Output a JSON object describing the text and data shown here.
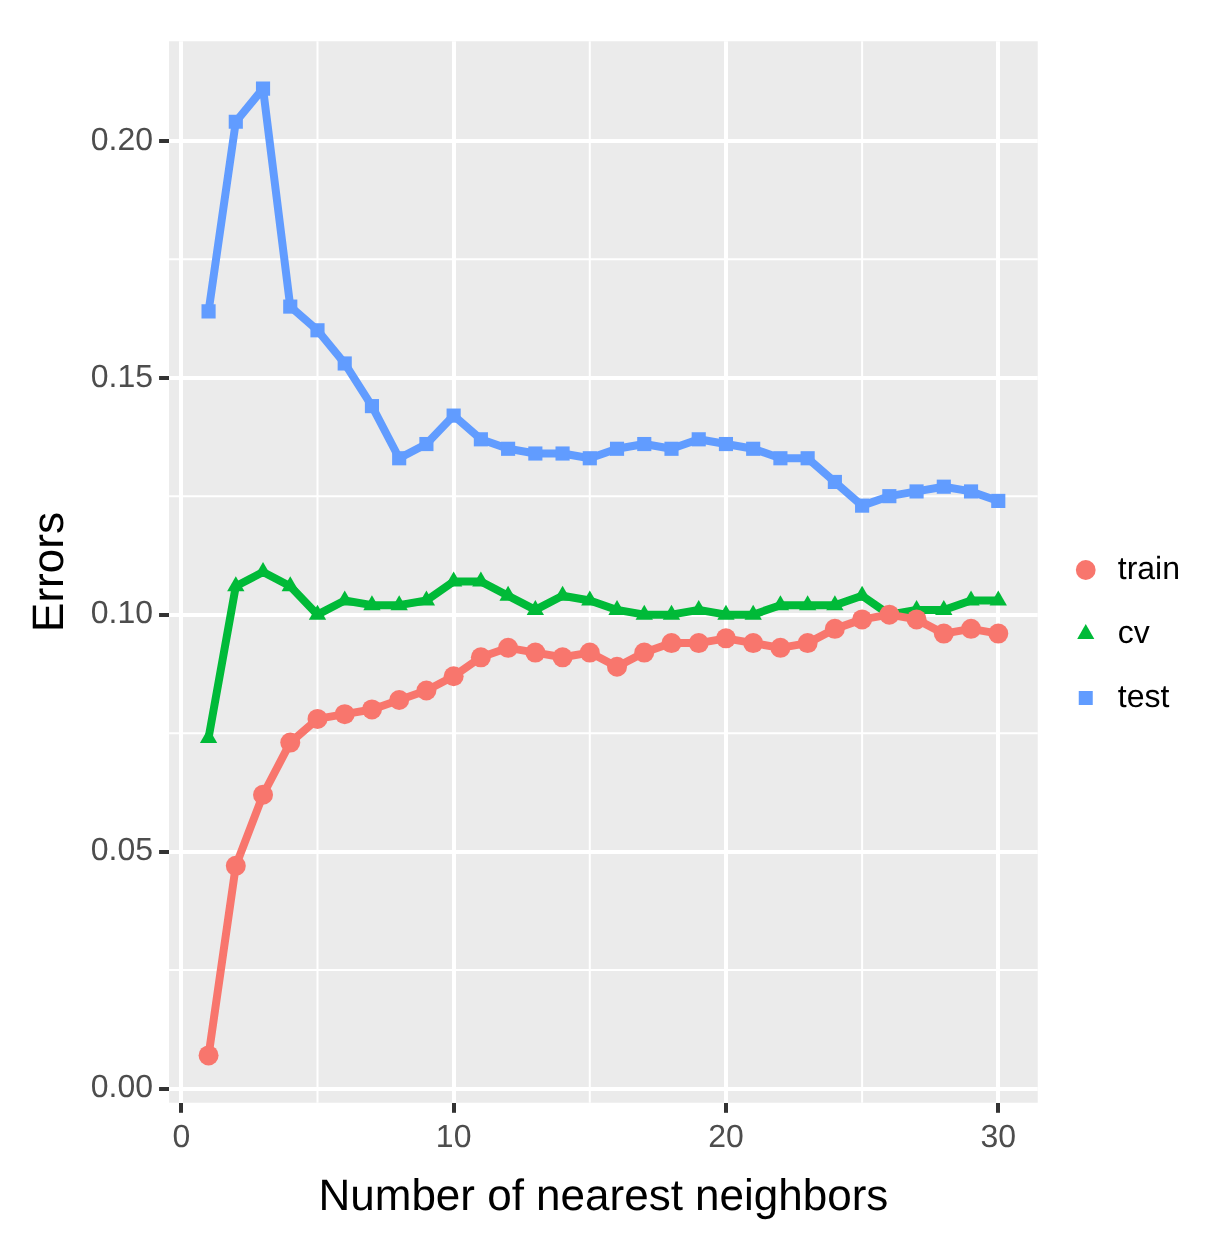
{
  "chart_data": {
    "type": "line",
    "xlabel": "Number of nearest neighbors",
    "ylabel": "Errors",
    "x": [
      1,
      2,
      3,
      4,
      5,
      6,
      7,
      8,
      9,
      10,
      11,
      12,
      13,
      14,
      15,
      16,
      17,
      18,
      19,
      20,
      21,
      22,
      23,
      24,
      25,
      26,
      27,
      28,
      29,
      30
    ],
    "xlim": [
      -0.45,
      31.45
    ],
    "xticks": [
      0,
      10,
      20,
      30
    ],
    "ylim": [
      -0.003,
      0.221
    ],
    "yticks": [
      {
        "value": 0,
        "label": "0.00"
      },
      0.05,
      {
        "value": 0.1,
        "label": "0.10"
      },
      0.15,
      {
        "value": 0.2,
        "label": "0.20"
      }
    ],
    "grid": true,
    "legend": "right",
    "line_style": "solid",
    "series": [
      {
        "name": "train",
        "color": "#f8766d",
        "marker": "circle",
        "values": [
          0.007,
          0.047,
          0.062,
          0.073,
          0.078,
          0.079,
          0.08,
          0.082,
          0.084,
          0.087,
          0.091,
          0.093,
          0.092,
          0.091,
          0.092,
          0.089,
          0.092,
          0.094,
          0.094,
          0.095,
          0.094,
          0.093,
          0.094,
          0.097,
          0.099,
          0.1,
          0.099,
          0.096,
          0.097,
          0.096
        ]
      },
      {
        "name": "cv",
        "color": "#00ba38",
        "marker": "triangle",
        "values": [
          0.074,
          0.106,
          0.109,
          0.106,
          0.1,
          0.103,
          0.102,
          0.102,
          0.103,
          0.107,
          0.107,
          0.104,
          0.101,
          0.104,
          0.103,
          0.101,
          0.1,
          0.1,
          0.101,
          0.1,
          0.1,
          0.102,
          0.102,
          0.102,
          0.104,
          0.1,
          0.101,
          0.101,
          0.103,
          0.103
        ]
      },
      {
        "name": "test",
        "color": "#619cff",
        "marker": "square",
        "values": [
          0.164,
          0.204,
          0.211,
          0.165,
          0.16,
          0.153,
          0.144,
          0.133,
          0.136,
          0.142,
          0.137,
          0.135,
          0.134,
          0.134,
          0.133,
          0.135,
          0.136,
          0.135,
          0.137,
          0.136,
          0.135,
          0.133,
          0.133,
          0.128,
          0.123,
          0.125,
          0.126,
          0.127,
          0.126,
          0.124
        ]
      }
    ]
  }
}
